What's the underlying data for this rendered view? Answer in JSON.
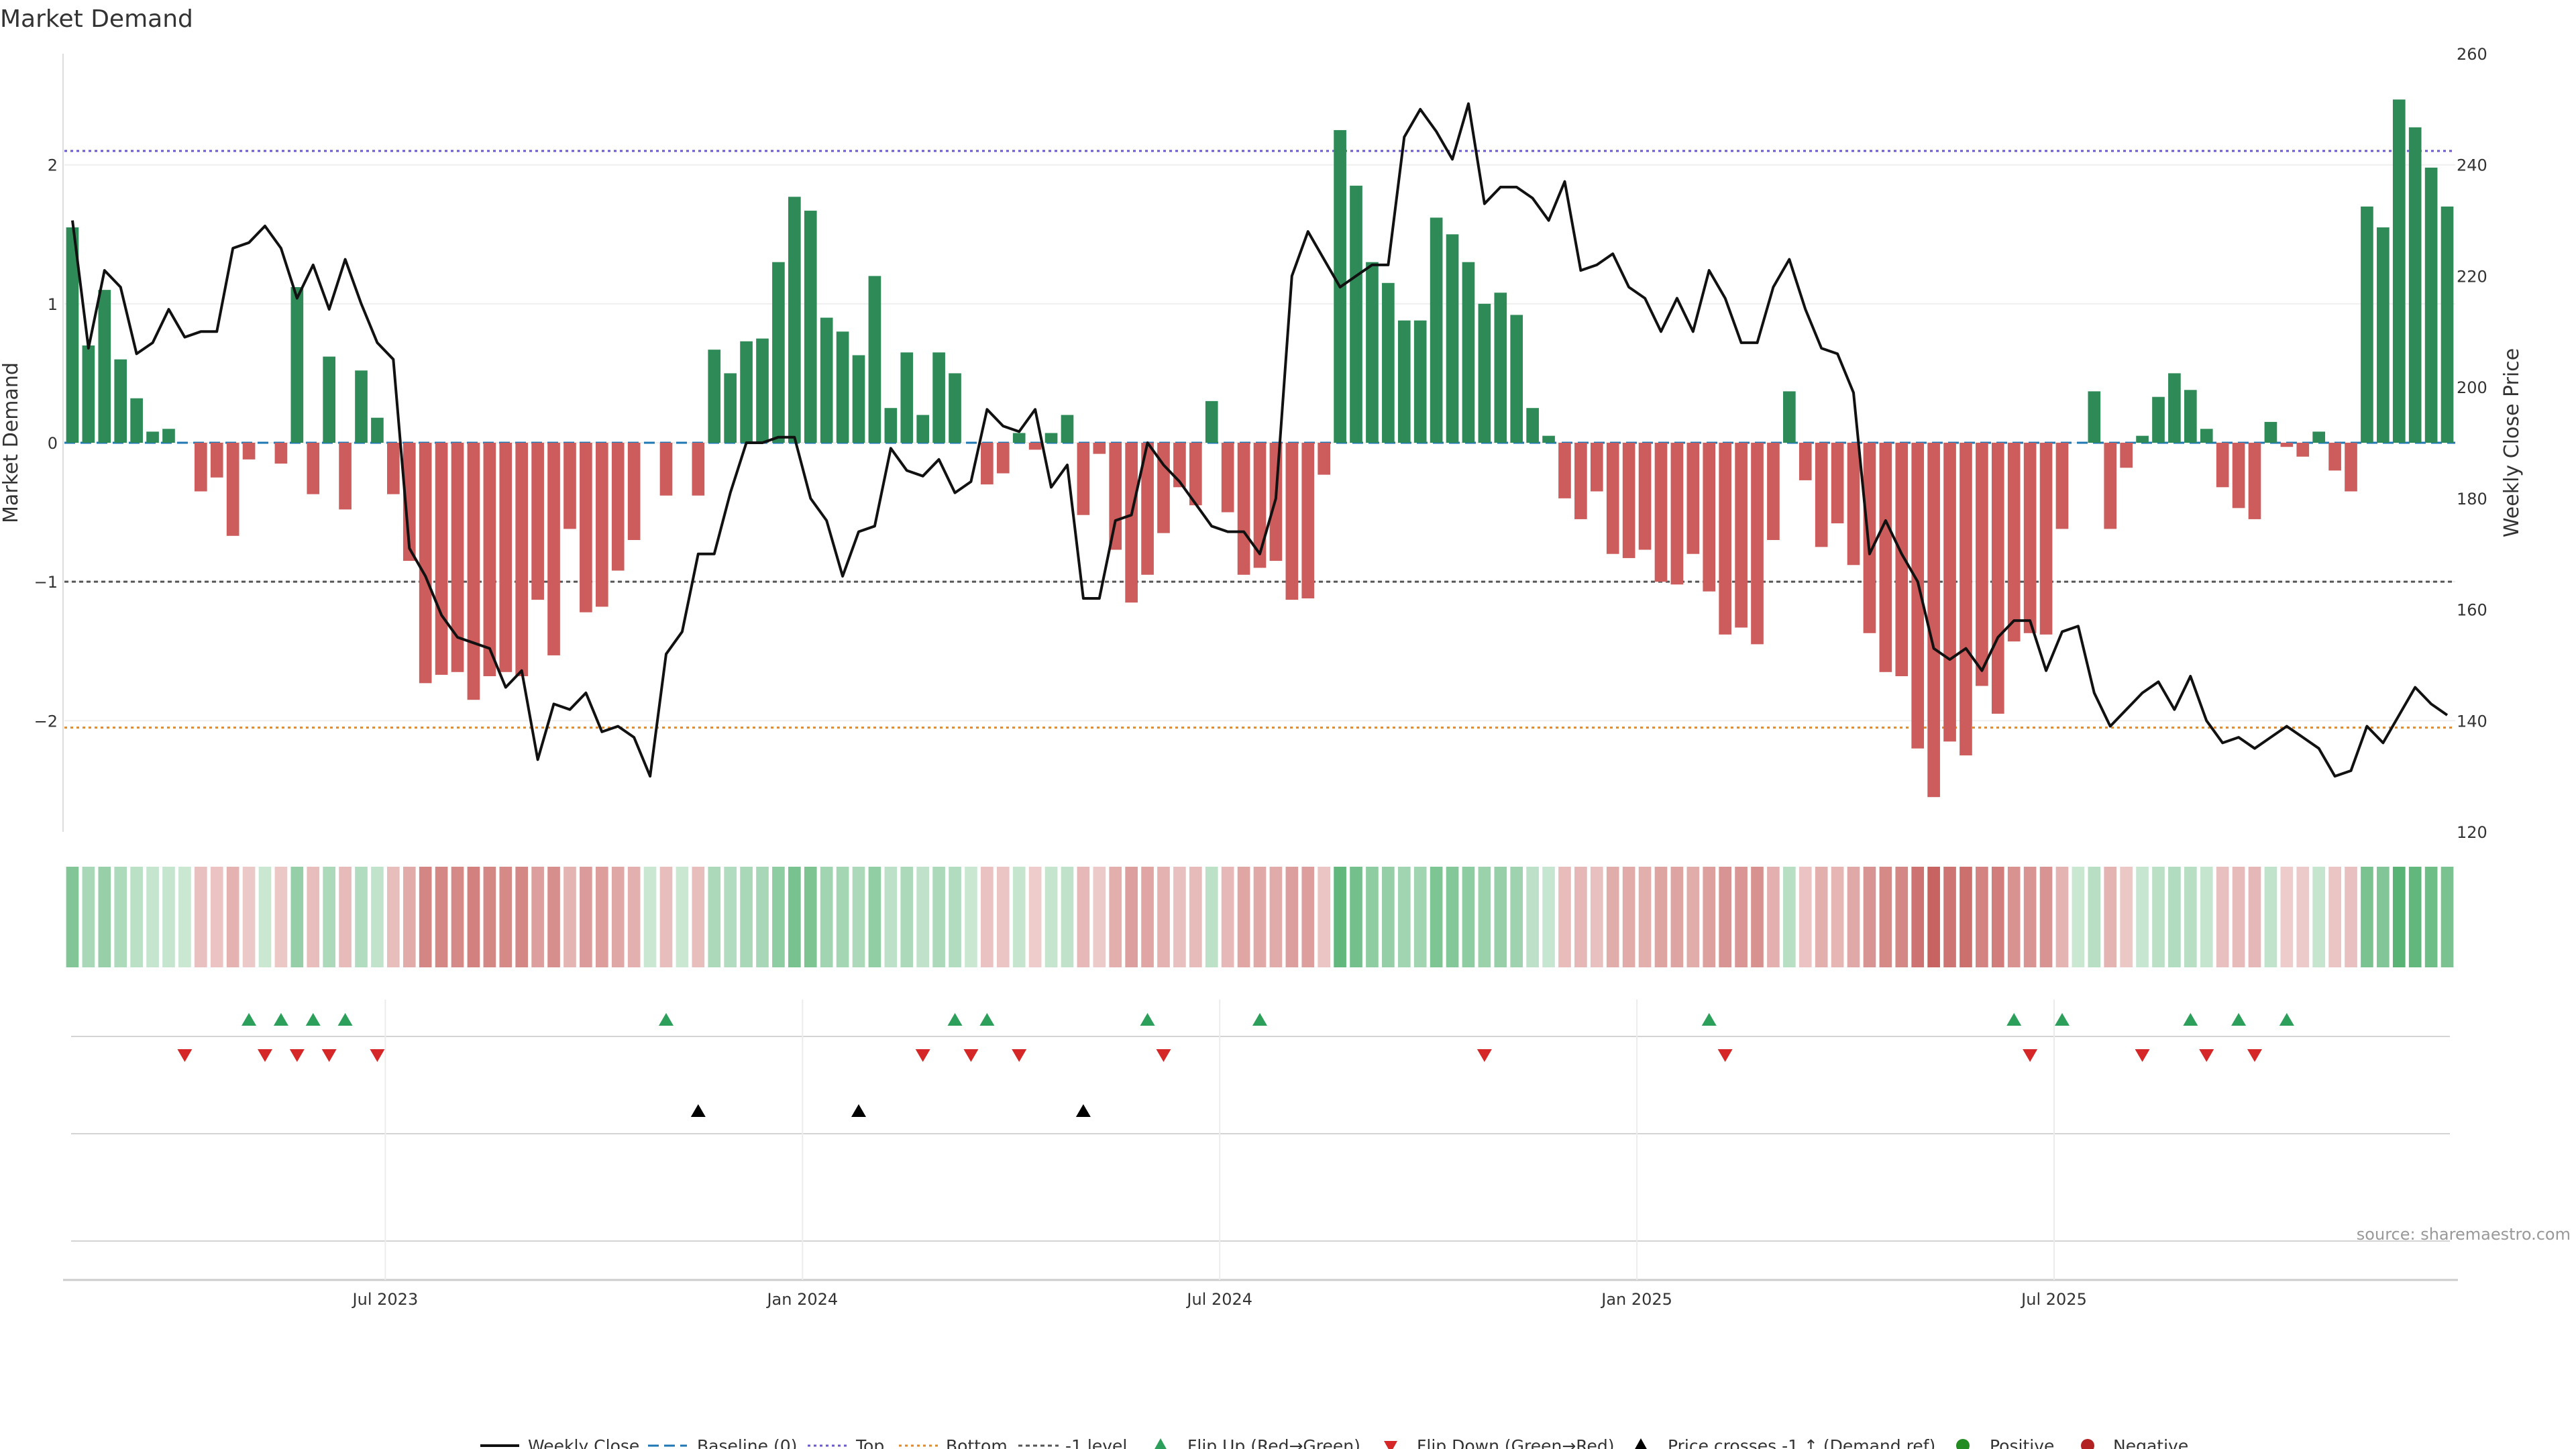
{
  "chart_data": {
    "type": "bar+line",
    "title": "Market Demand",
    "ylabel_left": "Market Demand",
    "ylabel_right": "Weekly Close Price",
    "ylim_left": [
      -2.8,
      2.8
    ],
    "ylim_right": [
      120,
      260
    ],
    "left_ticks": [
      2,
      1,
      0,
      -1,
      -2
    ],
    "left_tick_labels": [
      "2",
      "1",
      "0",
      "−1",
      "−2"
    ],
    "right_ticks": [
      260,
      240,
      220,
      200,
      180,
      160,
      140,
      120
    ],
    "levels": {
      "top": 2.1,
      "bottom": -2.05,
      "minus_one": -1,
      "baseline": 0
    },
    "x_tick_labels": [
      "Jul 2023",
      "Jan 2024",
      "Jul 2024",
      "Jan 2025",
      "Jul 2025"
    ],
    "x_tick_weeks": [
      20,
      46,
      72,
      98,
      124
    ],
    "demand": [
      1.55,
      0.7,
      1.1,
      0.6,
      0.32,
      0.08,
      0.1,
      0.0,
      -0.35,
      -0.25,
      -0.67,
      -0.12,
      0.0,
      -0.15,
      1.12,
      -0.37,
      0.62,
      -0.48,
      0.52,
      0.18,
      -0.37,
      -0.85,
      -1.73,
      -1.67,
      -1.65,
      -1.85,
      -1.68,
      -1.65,
      -1.68,
      -1.13,
      -1.53,
      -0.62,
      -1.22,
      -1.18,
      -0.92,
      -0.7,
      0.0,
      -0.38,
      0.0,
      -0.38,
      0.67,
      0.5,
      0.73,
      0.75,
      1.3,
      1.77,
      1.67,
      0.9,
      0.8,
      0.63,
      1.2,
      0.25,
      0.65,
      0.2,
      0.65,
      0.5,
      0.0,
      -0.3,
      -0.22,
      0.07,
      -0.05,
      0.07,
      0.2,
      -0.52,
      -0.08,
      -0.77,
      -1.15,
      -0.95,
      -0.65,
      -0.32,
      -0.45,
      0.3,
      -0.5,
      -0.95,
      -0.9,
      -0.85,
      -1.13,
      -1.12,
      -0.23,
      2.25,
      1.85,
      1.3,
      1.15,
      0.88,
      0.88,
      1.62,
      1.5,
      1.3,
      1.0,
      1.08,
      0.92,
      0.25,
      0.05,
      -0.4,
      -0.55,
      -0.35,
      -0.8,
      -0.83,
      -0.77,
      -1.0,
      -1.02,
      -0.8,
      -1.07,
      -1.38,
      -1.33,
      -1.45,
      -0.7,
      0.37,
      -0.27,
      -0.75,
      -0.58,
      -0.88,
      -1.37,
      -1.65,
      -1.68,
      -2.2,
      -2.55,
      -2.15,
      -2.25,
      -1.75,
      -1.95,
      -1.43,
      -1.37,
      -1.38,
      -0.62,
      0.0,
      0.37,
      -0.62,
      -0.18,
      0.05,
      0.33,
      0.5,
      0.38,
      0.1,
      -0.32,
      -0.47,
      -0.55,
      0.15,
      -0.03,
      -0.1,
      0.08,
      -0.2,
      -0.35,
      1.7,
      1.55,
      2.47,
      2.27,
      1.98,
      1.7
    ],
    "weekly_close": [
      230,
      207,
      221,
      218,
      206,
      208,
      214,
      209,
      210,
      210,
      225,
      226,
      229,
      225,
      216,
      222,
      214,
      223,
      215,
      208,
      205,
      171,
      166,
      159,
      155,
      154,
      153,
      146,
      149,
      133,
      143,
      142,
      145,
      138,
      139,
      137,
      130,
      152,
      156,
      170,
      170,
      181,
      190,
      190,
      191,
      191,
      180,
      176,
      166,
      174,
      175,
      189,
      185,
      184,
      187,
      181,
      183,
      196,
      193,
      192,
      196,
      182,
      186,
      162,
      162,
      176,
      177,
      190,
      186,
      183,
      179,
      175,
      174,
      174,
      170,
      180,
      220,
      228,
      223,
      218,
      220,
      222,
      222,
      245,
      250,
      246,
      241,
      251,
      233,
      236,
      236,
      234,
      230,
      237,
      221,
      222,
      224,
      218,
      216,
      210,
      216,
      210,
      221,
      216,
      208,
      208,
      218,
      223,
      214,
      207,
      206,
      199,
      170,
      176,
      170,
      165,
      153,
      151,
      153,
      149,
      155,
      158,
      158,
      149,
      156,
      157,
      145,
      139,
      142,
      145,
      147,
      142,
      148,
      140,
      136,
      137,
      135,
      137,
      139,
      137,
      135,
      130,
      131,
      139,
      136,
      141,
      146,
      143,
      141
    ],
    "flip_up_weeks": [
      11,
      13,
      15,
      17,
      37,
      55,
      57,
      67,
      74,
      102,
      121,
      124,
      132,
      135,
      138
    ],
    "flip_down_weeks": [
      7,
      12,
      14,
      16,
      19,
      53,
      56,
      59,
      68,
      88,
      103,
      122,
      129,
      133,
      136
    ],
    "price_cross_weeks": [
      39,
      49,
      63
    ]
  },
  "source": "source: sharemaestro.com",
  "colors": {
    "positive": "#2e8b57",
    "negative": "#cd5c5c",
    "top": "#6a5acd",
    "bottom": "#e08a2e",
    "minus_one": "#555555",
    "baseline": "#1f77b4",
    "flip_up": "#2ca05a",
    "flip_down": "#d62728",
    "price_cross": "#000000",
    "legend_positive": "#228b22",
    "legend_negative": "#b22222"
  },
  "legend": {
    "weekly_close": "Weekly Close",
    "baseline": "Baseline (0)",
    "top": "Top",
    "bottom": "Bottom",
    "minus_one": "-1 level",
    "flip_up": "Flip Up (Red→Green)",
    "flip_down": "Flip Down (Green→Red)",
    "price_cross": "Price crosses -1 ↑ (Demand ref)",
    "positive": "Positive",
    "negative": "Negative"
  }
}
